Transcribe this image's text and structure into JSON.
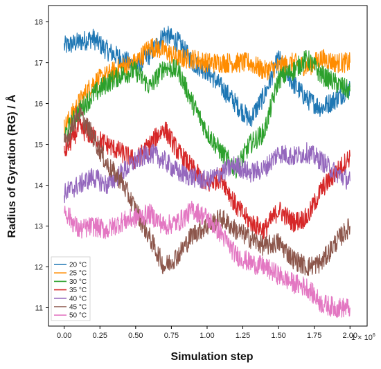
{
  "chart_data": {
    "type": "line",
    "xlabel": "Simulation step",
    "ylabel": "Radius of Gyration (RG) / Å",
    "x_multiplier": "1 × 10",
    "x_multiplier_exp": "6",
    "xlim": [
      -0.11,
      2.12
    ],
    "ylim": [
      10.55,
      18.4
    ],
    "xticks": [
      "0.00",
      "0.25",
      "0.50",
      "0.75",
      "1.00",
      "1.25",
      "1.50",
      "1.75",
      "2.00"
    ],
    "yticks": [
      "11",
      "12",
      "13",
      "14",
      "15",
      "16",
      "17",
      "18"
    ],
    "legend_position": "bottom-left",
    "grid": false,
    "x": [
      0.0,
      0.1,
      0.2,
      0.3,
      0.4,
      0.5,
      0.6,
      0.7,
      0.8,
      0.9,
      1.0,
      1.1,
      1.2,
      1.3,
      1.4,
      1.5,
      1.6,
      1.7,
      1.8,
      1.9,
      2.0
    ],
    "series": [
      {
        "name": "20 °C",
        "color": "#1f77b4",
        "values": [
          17.4,
          17.5,
          17.6,
          17.3,
          17.1,
          16.9,
          17.2,
          17.7,
          17.5,
          17.0,
          16.8,
          16.4,
          16.0,
          15.6,
          16.2,
          17.1,
          16.5,
          16.1,
          15.9,
          16.1,
          16.4
        ]
      },
      {
        "name": "25 °C",
        "color": "#ff8c00",
        "values": [
          15.4,
          16.0,
          16.5,
          16.7,
          16.9,
          17.0,
          17.4,
          17.3,
          17.1,
          17.1,
          17.0,
          17.0,
          17.0,
          17.0,
          16.8,
          16.9,
          17.0,
          16.9,
          17.1,
          17.0,
          17.0
        ]
      },
      {
        "name": "30 °C",
        "color": "#2ca02c",
        "values": [
          15.2,
          15.8,
          16.2,
          16.5,
          16.7,
          16.8,
          16.4,
          16.9,
          16.8,
          16.0,
          15.3,
          14.8,
          14.4,
          15.0,
          15.3,
          16.6,
          16.8,
          17.1,
          16.7,
          16.5,
          16.3
        ]
      },
      {
        "name": "35 °C",
        "color": "#d62728",
        "values": [
          14.8,
          15.4,
          15.2,
          15.0,
          14.8,
          14.6,
          15.0,
          15.4,
          14.8,
          14.4,
          14.0,
          14.2,
          13.5,
          13.1,
          12.9,
          13.4,
          13.1,
          13.2,
          13.9,
          14.3,
          14.7
        ]
      },
      {
        "name": "40 °C",
        "color": "#9467bd",
        "values": [
          13.8,
          14.0,
          14.2,
          14.0,
          14.3,
          14.6,
          14.8,
          14.6,
          14.3,
          14.2,
          14.1,
          14.3,
          14.5,
          14.3,
          14.4,
          14.8,
          14.7,
          14.8,
          14.6,
          14.3,
          14.1
        ]
      },
      {
        "name": "45 °C",
        "color": "#8c564b",
        "values": [
          15.0,
          15.8,
          15.2,
          14.5,
          14.1,
          13.4,
          12.7,
          12.0,
          12.3,
          12.8,
          13.0,
          13.2,
          12.9,
          12.7,
          12.5,
          12.6,
          12.2,
          12.0,
          12.1,
          12.6,
          13.0
        ]
      },
      {
        "name": "50 °C",
        "color": "#e377c2",
        "values": [
          13.4,
          12.9,
          13.0,
          12.9,
          13.1,
          13.2,
          13.3,
          13.0,
          13.1,
          13.4,
          13.2,
          12.8,
          12.3,
          12.1,
          12.0,
          11.8,
          11.6,
          11.5,
          11.1,
          11.0,
          11.0
        ]
      }
    ]
  }
}
